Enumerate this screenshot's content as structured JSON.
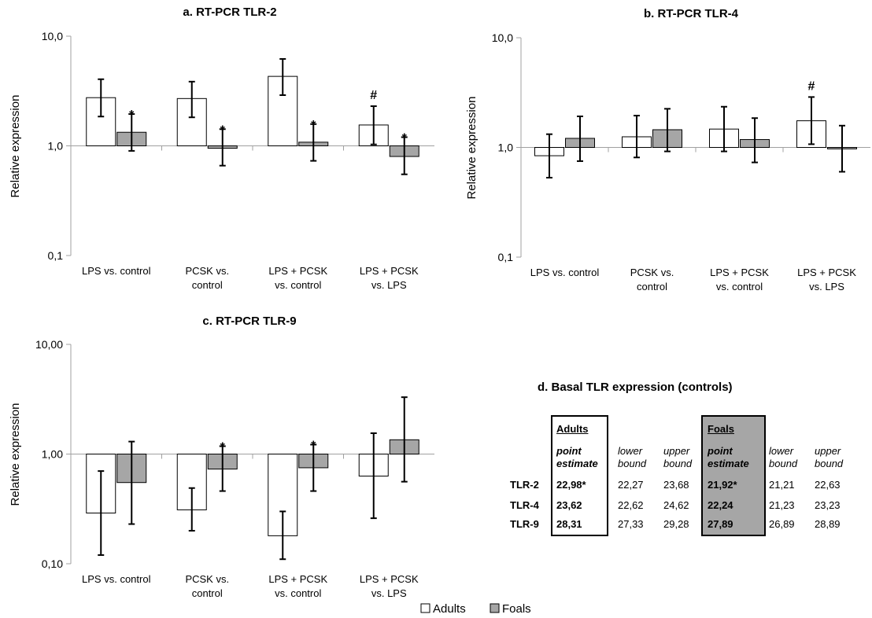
{
  "chart_data": [
    {
      "type": "bar",
      "title": "a. RT-PCR TLR-2",
      "ylabel": "Relative expression",
      "yscale": "log",
      "ylim": [
        0.1,
        10
      ],
      "yticks": [
        "0,1",
        "1,0",
        "10,0"
      ],
      "categories": [
        [
          "LPS vs. control"
        ],
        [
          "PCSK vs.",
          "control"
        ],
        [
          "LPS + PCSK",
          "vs. control"
        ],
        [
          "LPS + PCSK",
          "vs. LPS"
        ]
      ],
      "series": [
        {
          "name": "Adults",
          "values": [
            2.75,
            2.7,
            4.3,
            1.55
          ],
          "err_low": [
            1.85,
            1.82,
            2.9,
            1.03
          ],
          "err_high": [
            4.05,
            3.85,
            6.2,
            2.3
          ],
          "marks": [
            "",
            "",
            "",
            "#"
          ]
        },
        {
          "name": "Foals",
          "values": [
            1.33,
            0.95,
            1.08,
            0.8
          ],
          "err_low": [
            0.9,
            0.66,
            0.73,
            0.55
          ],
          "err_high": [
            1.95,
            1.42,
            1.58,
            1.2
          ],
          "marks": [
            "*",
            "*",
            "*",
            "*"
          ]
        }
      ]
    },
    {
      "type": "bar",
      "title": "b. RT-PCR TLR-4",
      "ylabel": "Relative expression",
      "yscale": "log",
      "ylim": [
        0.1,
        10
      ],
      "yticks": [
        "0,1",
        "1,0",
        "10,0"
      ],
      "categories": [
        [
          "LPS vs. control"
        ],
        [
          "PCSK vs.",
          "control"
        ],
        [
          "LPS + PCSK",
          "vs. control"
        ],
        [
          "LPS + PCSK",
          "vs. LPS"
        ]
      ],
      "series": [
        {
          "name": "Adults",
          "values": [
            0.84,
            1.25,
            1.47,
            1.75
          ],
          "err_low": [
            0.53,
            0.81,
            0.92,
            1.07
          ],
          "err_high": [
            1.32,
            1.95,
            2.35,
            2.88
          ],
          "marks": [
            "",
            "",
            "",
            "#"
          ]
        },
        {
          "name": "Foals",
          "values": [
            1.21,
            1.45,
            1.18,
            0.97
          ],
          "err_low": [
            0.75,
            0.92,
            0.73,
            0.6
          ],
          "err_high": [
            1.92,
            2.25,
            1.85,
            1.58
          ],
          "marks": [
            "",
            "",
            "",
            ""
          ]
        }
      ]
    },
    {
      "type": "bar",
      "title": "c. RT-PCR TLR-9",
      "ylabel": "Relative expression",
      "yscale": "log",
      "ylim": [
        0.1,
        10
      ],
      "yticks": [
        "0,10",
        "1,00",
        "10,00"
      ],
      "categories": [
        [
          "LPS vs. control"
        ],
        [
          "PCSK vs.",
          "control"
        ],
        [
          "LPS + PCSK",
          "vs. control"
        ],
        [
          "LPS + PCSK",
          "vs. LPS"
        ]
      ],
      "series": [
        {
          "name": "Adults",
          "values": [
            0.29,
            0.31,
            0.18,
            0.63
          ],
          "err_low": [
            0.12,
            0.2,
            0.11,
            0.26
          ],
          "err_high": [
            0.7,
            0.49,
            0.3,
            1.55
          ],
          "marks": [
            "",
            "",
            "",
            ""
          ]
        },
        {
          "name": "Foals",
          "values": [
            0.55,
            0.73,
            0.75,
            1.35
          ],
          "err_low": [
            0.23,
            0.46,
            0.46,
            0.56
          ],
          "err_high": [
            1.3,
            1.18,
            1.22,
            3.3
          ],
          "marks": [
            "",
            "*",
            "*",
            ""
          ]
        }
      ]
    },
    {
      "type": "table",
      "title": "d. Basal TLR expression (controls)",
      "groups": [
        "Adults",
        "Foals"
      ],
      "columns": [
        "point estimate",
        "lower bound",
        "upper bound"
      ],
      "rows": [
        {
          "label": "TLR-2",
          "adults": [
            "22,98*",
            "22,27",
            "23,68"
          ],
          "foals": [
            "21,92*",
            "21,21",
            "22,63"
          ]
        },
        {
          "label": "TLR-4",
          "adults": [
            "23,62",
            "22,62",
            "24,62"
          ],
          "foals": [
            "22,24",
            "21,23",
            "23,23"
          ]
        },
        {
          "label": "TLR-9",
          "adults": [
            "28,31",
            "27,33",
            "29,28"
          ],
          "foals": [
            "27,89",
            "26,89",
            "28,89"
          ]
        }
      ]
    }
  ],
  "legend": [
    {
      "label": "Adults",
      "color": "#ffffff"
    },
    {
      "label": "Foals",
      "color": "#a6a6a6"
    }
  ],
  "colors": {
    "adults": "#ffffff",
    "foals": "#a6a6a6",
    "axis": "#a0a0a0",
    "stroke": "#000000"
  }
}
